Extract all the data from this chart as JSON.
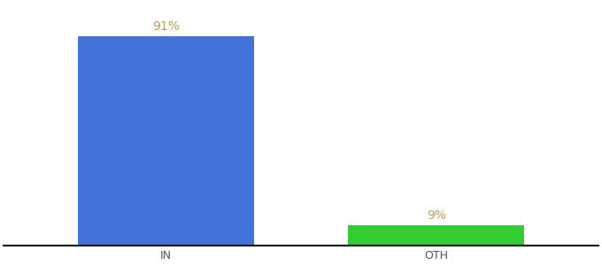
{
  "categories": [
    "IN",
    "OTH"
  ],
  "values": [
    91,
    9
  ],
  "bar_colors": [
    "#4472db",
    "#33cc33"
  ],
  "label_texts": [
    "91%",
    "9%"
  ],
  "label_color": "#b8a060",
  "background_color": "#ffffff",
  "bar_width": 0.65,
  "ylim": [
    0,
    105
  ],
  "label_fontsize": 10,
  "tick_fontsize": 9,
  "tick_color": "#555555",
  "spine_color": "#111111",
  "xlim": [
    -0.6,
    1.6
  ]
}
